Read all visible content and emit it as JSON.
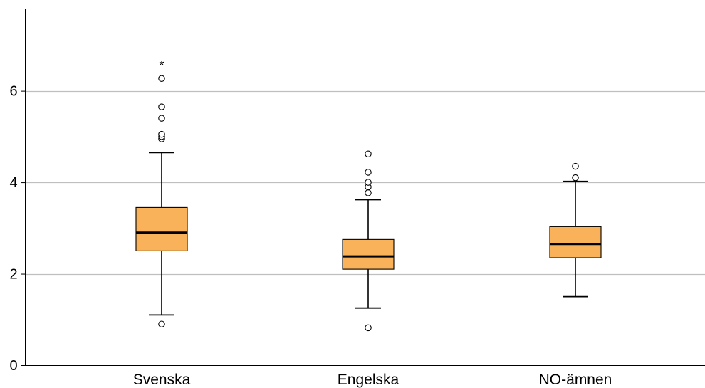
{
  "colors": {
    "box_fill": "#f9b25a",
    "gridline": "#bfbfbf",
    "axis": "#000000",
    "background": "#ffffff"
  },
  "chart_data": {
    "type": "boxplot",
    "title": "",
    "xlabel": "",
    "ylabel": "",
    "categories": [
      "Svenska",
      "Engelska",
      "NO-ämnen"
    ],
    "ylim": [
      0,
      7.8
    ],
    "yticks": [
      0,
      2,
      4,
      6
    ],
    "gridlines": [
      2,
      4,
      6
    ],
    "grid": "horizontal",
    "boxes": [
      {
        "category": "Svenska",
        "whisker_low": 1.1,
        "q1": 2.5,
        "median": 2.9,
        "q3": 3.45,
        "whisker_high": 4.65,
        "outliers": [
          0.9,
          4.95,
          5.0,
          5.05,
          5.4,
          5.65,
          6.27
        ],
        "extremes": [
          6.6
        ]
      },
      {
        "category": "Engelska",
        "whisker_low": 1.25,
        "q1": 2.1,
        "median": 2.38,
        "q3": 2.75,
        "whisker_high": 3.62,
        "outliers": [
          0.82,
          3.77,
          3.9,
          4.0,
          4.22,
          4.62
        ],
        "extremes": []
      },
      {
        "category": "NO-ämnen",
        "whisker_low": 1.5,
        "q1": 2.35,
        "median": 2.65,
        "q3": 3.03,
        "whisker_high": 4.02,
        "outliers": [
          4.1,
          4.35
        ],
        "extremes": []
      }
    ]
  }
}
